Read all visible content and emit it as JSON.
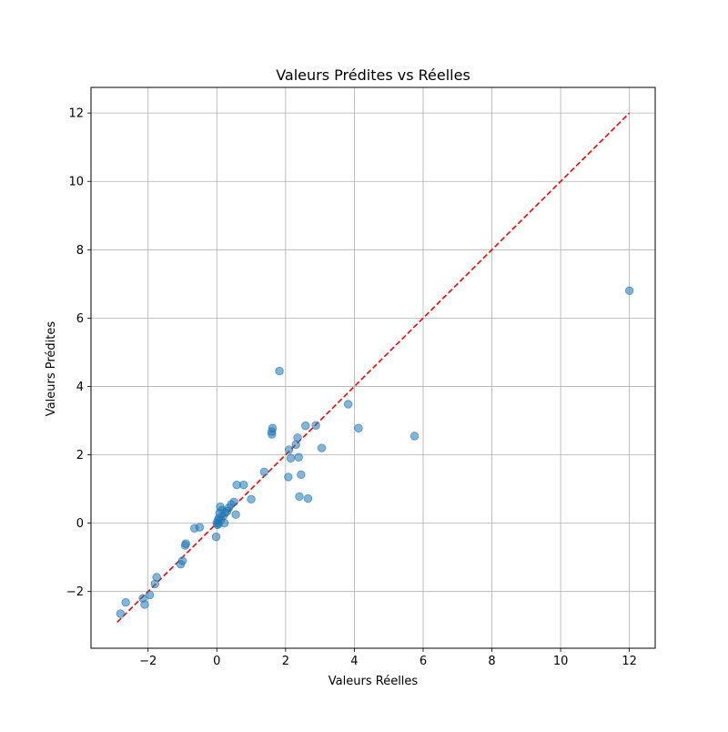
{
  "chart_data": {
    "type": "scatter",
    "title": "Valeurs Prédites vs Réelles",
    "xlabel": "Valeurs Réelles",
    "ylabel": "Valeurs Prédites",
    "xlim": [
      -3.66,
      12.75
    ],
    "ylim": [
      -3.66,
      12.75
    ],
    "xticks": [
      -2,
      0,
      2,
      4,
      6,
      8,
      10,
      12
    ],
    "yticks": [
      -2,
      0,
      2,
      4,
      6,
      8,
      10,
      12
    ],
    "xtick_labels": [
      "−2",
      "0",
      "2",
      "4",
      "6",
      "8",
      "10",
      "12"
    ],
    "ytick_labels": [
      "−2",
      "0",
      "2",
      "4",
      "6",
      "8",
      "10",
      "12"
    ],
    "grid": true,
    "point_color": "#1f77b4",
    "point_alpha": 0.55,
    "reference_line": {
      "x": [
        -2.9,
        12.0
      ],
      "y": [
        -2.9,
        12.0
      ],
      "color": "#ff0000",
      "style": "dashed"
    },
    "points": [
      {
        "x": 12.0,
        "y": 6.8
      },
      {
        "x": 5.75,
        "y": 2.55
      },
      {
        "x": 4.12,
        "y": 2.78
      },
      {
        "x": 3.82,
        "y": 3.48
      },
      {
        "x": 3.05,
        "y": 2.2
      },
      {
        "x": 2.88,
        "y": 2.86
      },
      {
        "x": 2.58,
        "y": 2.85
      },
      {
        "x": 2.65,
        "y": 0.72
      },
      {
        "x": 2.45,
        "y": 1.42
      },
      {
        "x": 2.4,
        "y": 0.78
      },
      {
        "x": 2.35,
        "y": 2.5
      },
      {
        "x": 2.38,
        "y": 1.93
      },
      {
        "x": 2.3,
        "y": 2.3
      },
      {
        "x": 2.15,
        "y": 1.9
      },
      {
        "x": 2.1,
        "y": 2.15
      },
      {
        "x": 2.08,
        "y": 1.35
      },
      {
        "x": 1.82,
        "y": 4.45
      },
      {
        "x": 1.62,
        "y": 2.78
      },
      {
        "x": 1.6,
        "y": 2.68
      },
      {
        "x": 1.6,
        "y": 2.6
      },
      {
        "x": 1.38,
        "y": 1.5
      },
      {
        "x": 1.0,
        "y": 0.7
      },
      {
        "x": 0.78,
        "y": 1.12
      },
      {
        "x": 0.58,
        "y": 1.12
      },
      {
        "x": 0.55,
        "y": 0.25
      },
      {
        "x": 0.5,
        "y": 0.62
      },
      {
        "x": 0.42,
        "y": 0.55
      },
      {
        "x": 0.35,
        "y": 0.45
      },
      {
        "x": 0.3,
        "y": 0.35
      },
      {
        "x": 0.25,
        "y": 0.3
      },
      {
        "x": 0.22,
        "y": 0.0
      },
      {
        "x": 0.18,
        "y": 0.2
      },
      {
        "x": 0.15,
        "y": 0.38
      },
      {
        "x": 0.12,
        "y": 0.1
      },
      {
        "x": 0.1,
        "y": 0.48
      },
      {
        "x": 0.08,
        "y": 0.3
      },
      {
        "x": 0.06,
        "y": 0.15
      },
      {
        "x": 0.05,
        "y": -0.02
      },
      {
        "x": 0.03,
        "y": 0.08
      },
      {
        "x": 0.02,
        "y": -0.05
      },
      {
        "x": 0.0,
        "y": 0.0
      },
      {
        "x": -0.02,
        "y": -0.4
      },
      {
        "x": -0.5,
        "y": -0.12
      },
      {
        "x": -0.65,
        "y": -0.15
      },
      {
        "x": -0.9,
        "y": -0.6
      },
      {
        "x": -0.92,
        "y": -0.65
      },
      {
        "x": -1.0,
        "y": -1.1
      },
      {
        "x": -1.05,
        "y": -1.2
      },
      {
        "x": -1.75,
        "y": -1.58
      },
      {
        "x": -1.8,
        "y": -1.78
      },
      {
        "x": -1.95,
        "y": -2.1
      },
      {
        "x": -2.1,
        "y": -2.38
      },
      {
        "x": -2.15,
        "y": -2.2
      },
      {
        "x": -2.65,
        "y": -2.32
      },
      {
        "x": -2.8,
        "y": -2.65
      }
    ]
  }
}
